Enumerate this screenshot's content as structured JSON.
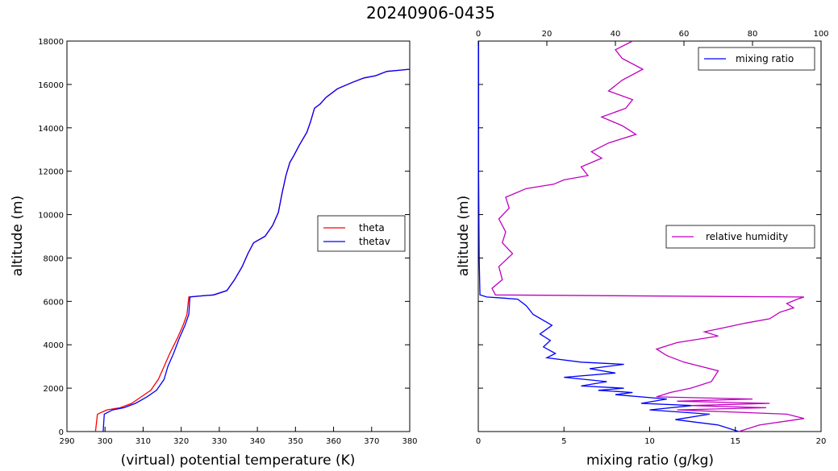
{
  "title": "20240906-0435",
  "chart_data": [
    {
      "type": "line",
      "xlabel": "(virtual) potential temperature (K)",
      "ylabel": "altitude (m)",
      "xlim": [
        290,
        380
      ],
      "ylim": [
        0,
        18000
      ],
      "xticks": [
        "290",
        "300",
        "310",
        "320",
        "330",
        "340",
        "350",
        "360",
        "370",
        "380"
      ],
      "yticks": [
        "0",
        "2000",
        "4000",
        "6000",
        "8000",
        "10000",
        "12000",
        "14000",
        "16000",
        "18000"
      ],
      "grid": false,
      "legend": "center-right",
      "series": [
        {
          "name": "theta",
          "color": "#ff0000",
          "x": [
            297.5,
            298.0,
            300.5,
            304.0,
            307.0,
            309.5,
            312.0,
            314.0,
            315.5,
            317.0,
            319.0,
            320.5,
            321.5,
            322.0,
            325.0,
            328.5,
            332.0,
            334.0,
            336.0,
            337.5,
            339.0,
            342.0,
            344.0,
            345.5,
            346.5,
            347.5,
            348.5,
            349.5,
            351.0,
            353.0,
            354.0,
            355.0,
            356.5,
            358.0,
            361.0,
            365.0,
            368.0,
            371.0,
            374.0,
            377.0,
            380.0
          ],
          "y": [
            0,
            800,
            1000,
            1100,
            1300,
            1600,
            1900,
            2400,
            3000,
            3600,
            4300,
            4900,
            5400,
            6200,
            6250,
            6300,
            6500,
            7000,
            7600,
            8200,
            8700,
            9000,
            9500,
            10100,
            11000,
            11800,
            12400,
            12700,
            13200,
            13800,
            14300,
            14900,
            15100,
            15400,
            15800,
            16100,
            16300,
            16400,
            16600,
            16650,
            16700
          ]
        },
        {
          "name": "thetav",
          "color": "#0000ff",
          "x": [
            299.5,
            299.8,
            302.0,
            305.0,
            308.0,
            311.0,
            313.5,
            315.5,
            316.5,
            318.0,
            319.5,
            321.0,
            322.0,
            322.3,
            325.0,
            328.5,
            332.0,
            334.0,
            336.0,
            337.5,
            339.0,
            342.0,
            344.0,
            345.5,
            346.5,
            347.5,
            348.5,
            349.5,
            351.0,
            353.0,
            354.0,
            355.0,
            356.5,
            358.0,
            361.0,
            365.0,
            368.0,
            371.0,
            374.0,
            377.0,
            380.0
          ],
          "y": [
            0,
            800,
            1000,
            1100,
            1300,
            1600,
            1900,
            2400,
            3000,
            3600,
            4300,
            4900,
            5400,
            6200,
            6250,
            6300,
            6500,
            7000,
            7600,
            8200,
            8700,
            9000,
            9500,
            10100,
            11000,
            11800,
            12400,
            12700,
            13200,
            13800,
            14300,
            14900,
            15100,
            15400,
            15800,
            16100,
            16300,
            16400,
            16600,
            16650,
            16700
          ]
        }
      ]
    },
    {
      "type": "line",
      "xlabel": "mixing ratio (g/kg)",
      "ylabel": "altitude (m)",
      "xlim": [
        0,
        20
      ],
      "xlim_top": [
        0,
        100
      ],
      "ylim": [
        0,
        18000
      ],
      "xticks": [
        "0",
        "5",
        "10",
        "15",
        "20"
      ],
      "xticks_top": [
        "0",
        "20",
        "40",
        "60",
        "80",
        "100"
      ],
      "grid": false,
      "legend": "top-right (mixing ratio), center-right (relative humidity)",
      "series": [
        {
          "name": "mixing ratio",
          "color": "#0000ff",
          "axis": "bottom",
          "x": [
            15.2,
            14.0,
            11.5,
            13.5,
            10.0,
            12.5,
            9.5,
            11.0,
            8.0,
            9.0,
            7.0,
            8.5,
            6.0,
            7.5,
            5.0,
            8.0,
            6.5,
            8.5,
            6.0,
            4.0,
            4.5,
            3.8,
            4.2,
            3.6,
            4.3,
            3.2,
            2.8,
            2.3,
            1.5,
            0.5,
            0.1,
            0.05,
            0.02,
            0.02
          ],
          "y": [
            0,
            300,
            550,
            800,
            1000,
            1200,
            1300,
            1500,
            1700,
            1800,
            1900,
            2000,
            2100,
            2300,
            2500,
            2700,
            2900,
            3100,
            3200,
            3400,
            3600,
            3900,
            4200,
            4500,
            4900,
            5400,
            5800,
            6100,
            6150,
            6200,
            6300,
            8000,
            12000,
            18000
          ]
        },
        {
          "name": "relative humidity",
          "color": "#bf00bf",
          "axis": "top",
          "x": [
            76,
            82,
            95,
            90,
            58,
            84,
            62,
            85,
            58,
            80,
            52,
            56,
            62,
            68,
            70,
            60,
            55,
            52,
            58,
            70,
            66,
            72,
            78,
            85,
            88,
            92,
            90,
            93,
            95,
            5,
            4,
            7,
            6,
            10,
            7,
            8,
            6,
            9,
            8,
            14,
            22,
            25,
            32,
            30,
            36,
            33,
            38,
            46,
            42,
            36,
            43,
            45,
            38,
            42,
            48,
            42,
            40,
            45
          ],
          "y": [
            0,
            300,
            600,
            800,
            1000,
            1100,
            1200,
            1300,
            1400,
            1500,
            1600,
            1800,
            2000,
            2300,
            2800,
            3200,
            3500,
            3800,
            4100,
            4400,
            4600,
            4800,
            5000,
            5200,
            5500,
            5700,
            5900,
            6100,
            6200,
            6300,
            6600,
            7000,
            7600,
            8200,
            8700,
            9200,
            9800,
            10300,
            10800,
            11200,
            11400,
            11600,
            11800,
            12200,
            12600,
            12900,
            13300,
            13700,
            14100,
            14500,
            14900,
            15300,
            15700,
            16200,
            16700,
            17200,
            17600,
            18000
          ]
        }
      ]
    }
  ]
}
